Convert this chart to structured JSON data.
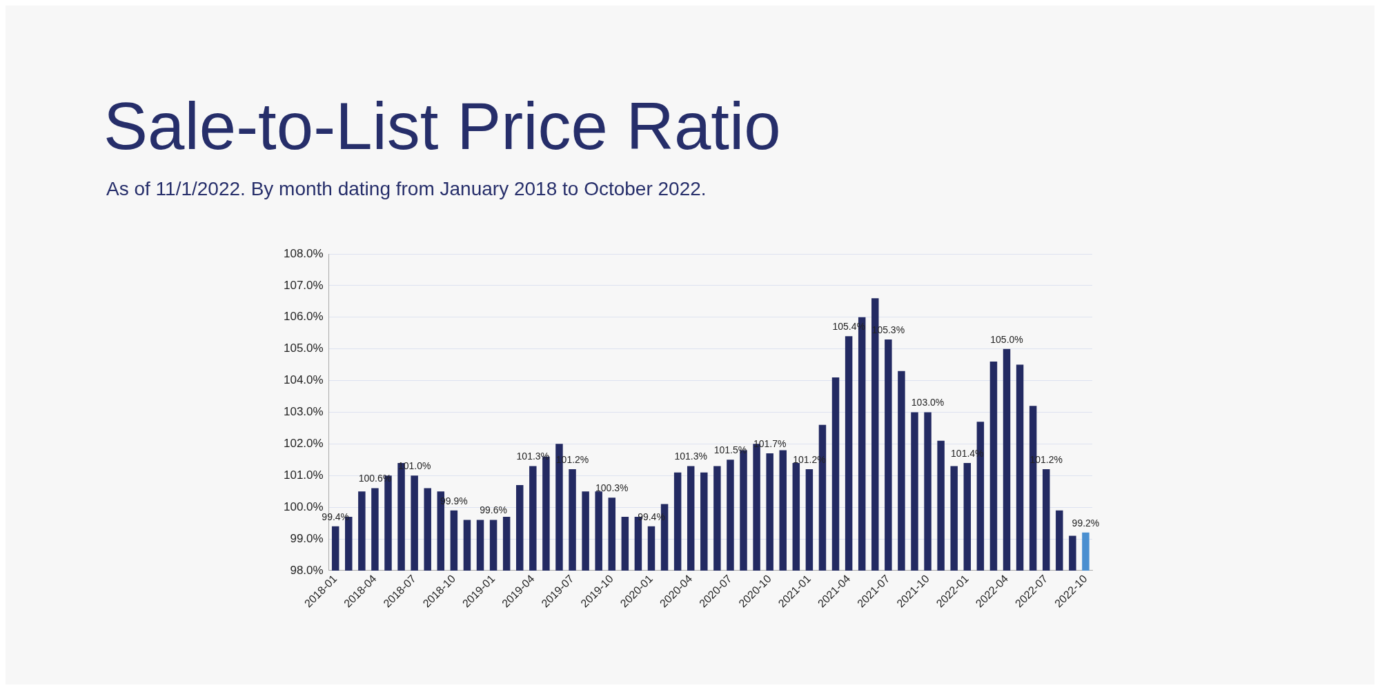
{
  "chart_data": {
    "type": "bar",
    "title": "Sale-to-List Price Ratio",
    "subtitle": "As of 11/1/2022. By month dating from January 2018 to October 2022.",
    "categories": [
      "2018-01",
      null,
      null,
      "2018-04",
      null,
      null,
      "2018-07",
      null,
      null,
      "2018-10",
      null,
      null,
      "2019-01",
      null,
      null,
      "2019-04",
      null,
      null,
      "2019-07",
      null,
      null,
      "2019-10",
      null,
      null,
      "2020-01",
      null,
      null,
      "2020-04",
      null,
      null,
      "2020-07",
      null,
      null,
      "2020-10",
      null,
      null,
      "2021-01",
      null,
      null,
      "2021-04",
      null,
      null,
      "2021-07",
      null,
      null,
      "2021-10",
      null,
      null,
      "2022-01",
      null,
      null,
      "2022-04",
      null,
      null,
      "2022-07",
      null,
      null,
      "2022-10"
    ],
    "values": [
      99.4,
      99.7,
      100.5,
      100.6,
      101.0,
      101.4,
      101.0,
      100.6,
      100.5,
      99.9,
      99.6,
      99.6,
      99.6,
      99.7,
      100.7,
      101.3,
      101.6,
      102.0,
      101.2,
      100.5,
      100.5,
      100.3,
      99.7,
      99.7,
      99.4,
      100.1,
      101.1,
      101.3,
      101.1,
      101.3,
      101.5,
      101.8,
      102.0,
      101.7,
      101.8,
      101.4,
      101.2,
      102.6,
      104.1,
      105.4,
      106.0,
      106.6,
      105.3,
      104.3,
      103.0,
      103.0,
      102.1,
      101.3,
      101.4,
      102.7,
      104.6,
      105.0,
      104.5,
      103.2,
      101.2,
      99.9,
      99.1,
      99.2
    ],
    "value_labels": [
      "99.4%",
      null,
      null,
      "100.6%",
      null,
      null,
      "101.0%",
      null,
      null,
      "99.9%",
      null,
      null,
      "99.6%",
      null,
      null,
      "101.3%",
      null,
      null,
      "101.2%",
      null,
      null,
      "100.3%",
      null,
      null,
      "99.4%",
      null,
      null,
      "101.3%",
      null,
      null,
      "101.5%",
      null,
      null,
      "101.7%",
      null,
      null,
      "101.2%",
      null,
      null,
      "105.4%",
      null,
      null,
      "105.3%",
      null,
      null,
      "103.0%",
      null,
      null,
      "101.4%",
      null,
      null,
      "105.0%",
      null,
      null,
      "101.2%",
      null,
      null,
      "99.2%"
    ],
    "colors": [
      "#232a62",
      "#232a62",
      "#232a62",
      "#232a62",
      "#232a62",
      "#232a62",
      "#232a62",
      "#232a62",
      "#232a62",
      "#232a62",
      "#232a62",
      "#232a62",
      "#232a62",
      "#232a62",
      "#232a62",
      "#232a62",
      "#232a62",
      "#232a62",
      "#232a62",
      "#232a62",
      "#232a62",
      "#232a62",
      "#232a62",
      "#232a62",
      "#232a62",
      "#232a62",
      "#232a62",
      "#232a62",
      "#232a62",
      "#232a62",
      "#232a62",
      "#232a62",
      "#232a62",
      "#232a62",
      "#232a62",
      "#232a62",
      "#232a62",
      "#232a62",
      "#232a62",
      "#232a62",
      "#232a62",
      "#232a62",
      "#232a62",
      "#232a62",
      "#232a62",
      "#232a62",
      "#232a62",
      "#232a62",
      "#232a62",
      "#232a62",
      "#232a62",
      "#232a62",
      "#232a62",
      "#232a62",
      "#232a62",
      "#232a62",
      "#232a62",
      "#4a8fd0"
    ],
    "ylim": [
      98,
      108
    ],
    "yticks": [
      {
        "value": 98,
        "label": "98.0%"
      },
      {
        "value": 99,
        "label": "99.0%"
      },
      {
        "value": 100,
        "label": "100.0%"
      },
      {
        "value": 101,
        "label": "101.0%"
      },
      {
        "value": 102,
        "label": "102.0%"
      },
      {
        "value": 103,
        "label": "103.0%"
      },
      {
        "value": 104,
        "label": "104.0%"
      },
      {
        "value": 105,
        "label": "105.0%"
      },
      {
        "value": 106,
        "label": "106.0%"
      },
      {
        "value": 107,
        "label": "107.0%"
      },
      {
        "value": 108,
        "label": "108.0%"
      }
    ],
    "grid": "y",
    "legend": false
  }
}
